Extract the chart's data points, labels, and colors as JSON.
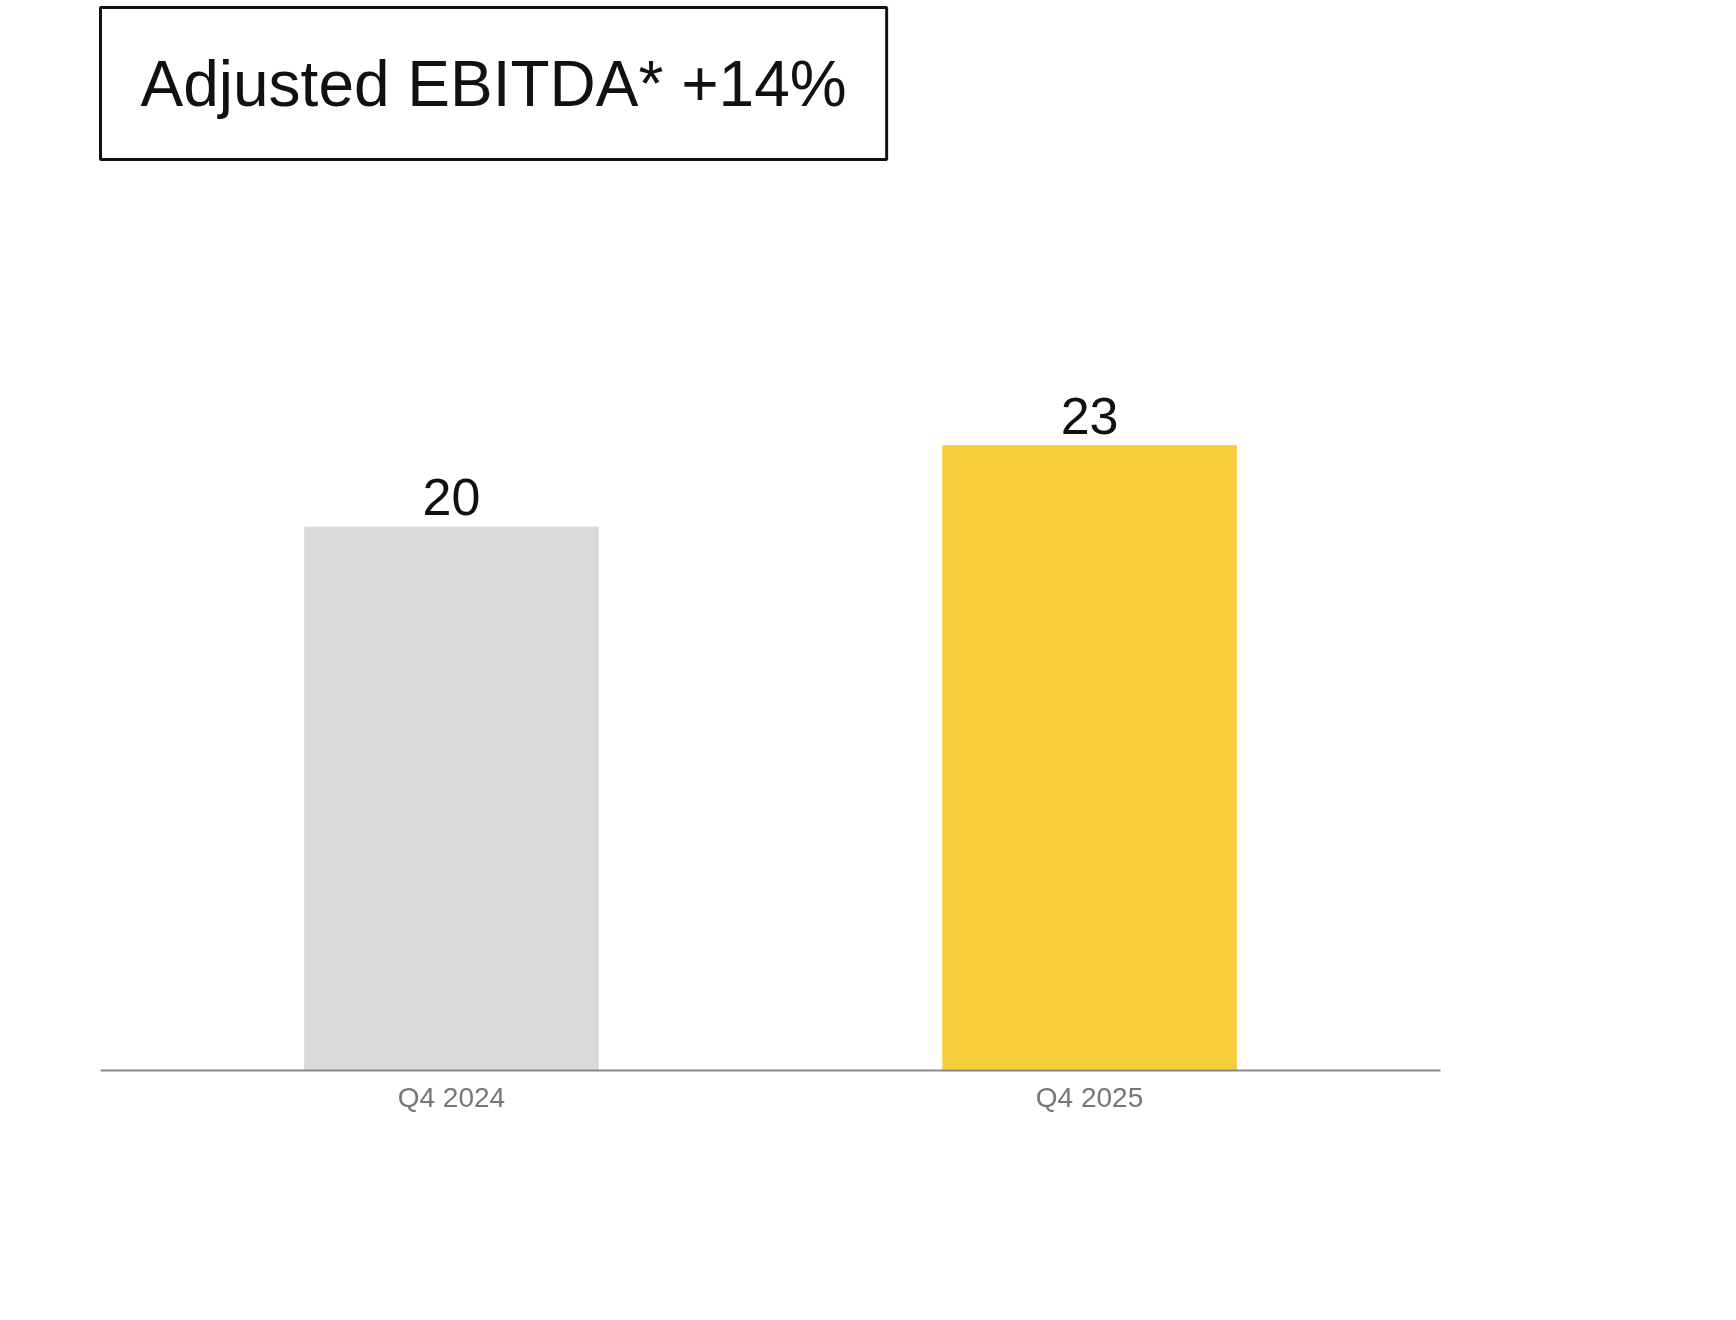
{
  "chart_data": {
    "type": "bar",
    "title": "Adjusted EBITDA* +14%",
    "categories": [
      "Q4 2024",
      "Q4 2025"
    ],
    "values": [
      20,
      23
    ],
    "colors": [
      "#d9d9d9",
      "#f6ce3b"
    ],
    "data_labels": true,
    "grid": false,
    "tick_labels": "x"
  }
}
